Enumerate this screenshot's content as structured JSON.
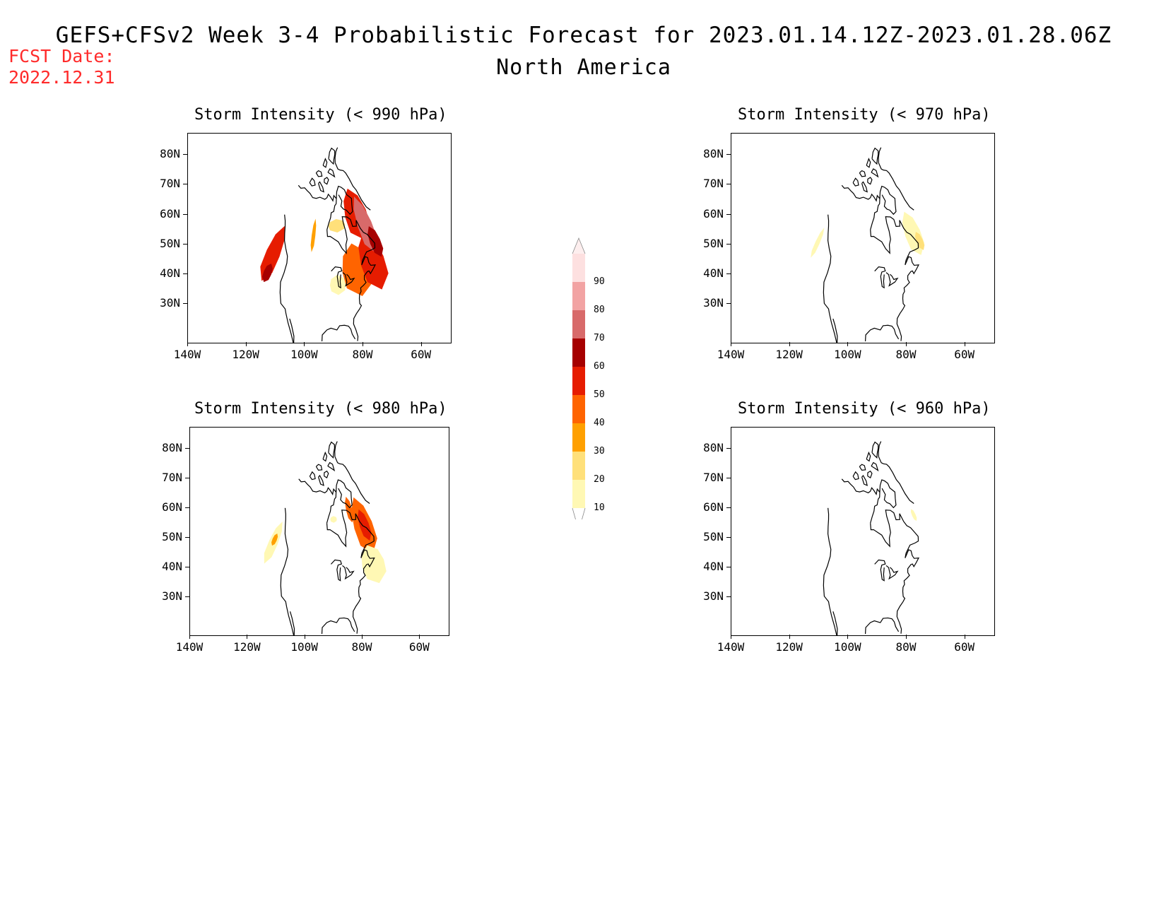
{
  "header": {
    "title": "GEFS+CFSv2 Week 3-4 Probabilistic Forecast for 2023.01.14.12Z-2023.01.28.06Z",
    "subtitle": "North America",
    "fcst_label": "FCST Date:",
    "fcst_date": "2022.12.31"
  },
  "colors": {
    "scale": [
      "#fff8b4",
      "#ffe07a",
      "#ffa000",
      "#ff6400",
      "#e61c00",
      "#a60000",
      "#d86a6a",
      "#f2a3a3",
      "#fde0e0"
    ]
  },
  "colorbar": {
    "labels": [
      "10",
      "20",
      "30",
      "40",
      "50",
      "60",
      "70",
      "80",
      "90"
    ]
  },
  "axes": {
    "lat_labels": [
      "80N",
      "70N",
      "60N",
      "50N",
      "40N",
      "30N"
    ],
    "lon_labels": [
      "140W",
      "120W",
      "100W",
      "80W",
      "60W"
    ]
  },
  "panels": [
    {
      "title": "Storm Intensity (< 990 hPa)",
      "blobs": [
        {
          "lon": -135.5,
          "lat": 48,
          "rw": 6,
          "rh": 9,
          "level": 5
        },
        {
          "lon": -134,
          "lat": 42,
          "rw": 3,
          "rh": 3,
          "level": 6
        },
        {
          "lon": -107.5,
          "lat": 57,
          "rw": 2,
          "rh": 5,
          "level": 3
        },
        {
          "lon": -85,
          "lat": 60,
          "rw": 10,
          "rh": 2,
          "level": 2
        },
        {
          "lon": -88,
          "lat": 42.5,
          "rw": 6,
          "rh": 3,
          "level": 1
        },
        {
          "lon": -74,
          "lat": 46,
          "rw": 12,
          "rh": 8,
          "level": 4
        },
        {
          "lon": -62,
          "lat": 47,
          "rw": 10,
          "rh": 9,
          "level": 5
        },
        {
          "lon": -63,
          "lat": 62,
          "rw": 14,
          "rh": 8,
          "level": 5
        },
        {
          "lon": -58,
          "lat": 58,
          "rw": 8,
          "rh": 9,
          "level": 7
        },
        {
          "lon": -55,
          "lat": 52,
          "rw": 5,
          "rh": 5,
          "level": 6
        }
      ]
    },
    {
      "title": "Storm Intensity (< 970 hPa)",
      "blobs": [
        {
          "lon": -57,
          "lat": 55,
          "rw": 8,
          "rh": 7,
          "level": 1
        },
        {
          "lon": -54,
          "lat": 52,
          "rw": 3,
          "rh": 3,
          "level": 2
        },
        {
          "lon": -138,
          "lat": 51,
          "rw": 2,
          "rh": 5,
          "level": 1
        }
      ]
    },
    {
      "title": "Storm Intensity (< 980 hPa)",
      "blobs": [
        {
          "lon": -137,
          "lat": 49,
          "rw": 4,
          "rh": 7,
          "level": 1
        },
        {
          "lon": -137,
          "lat": 50,
          "rw": 2,
          "rh": 2,
          "level": 3
        },
        {
          "lon": -61,
          "lat": 56,
          "rw": 10,
          "rh": 9,
          "level": 4
        },
        {
          "lon": -60,
          "lat": 56,
          "rw": 5,
          "rh": 5,
          "level": 5
        },
        {
          "lon": -70,
          "lat": 62,
          "rw": 4,
          "rh": 4,
          "level": 4
        },
        {
          "lon": -63,
          "lat": 44,
          "rw": 9,
          "rh": 6,
          "level": 1
        },
        {
          "lon": -88,
          "lat": 60,
          "rw": 4,
          "rh": 1,
          "level": 1
        }
      ]
    },
    {
      "title": "Storm Intensity (< 960 hPa)",
      "blobs": [
        {
          "lon": -52,
          "lat": 58,
          "rw": 2,
          "rh": 2,
          "level": 1
        }
      ]
    }
  ]
}
